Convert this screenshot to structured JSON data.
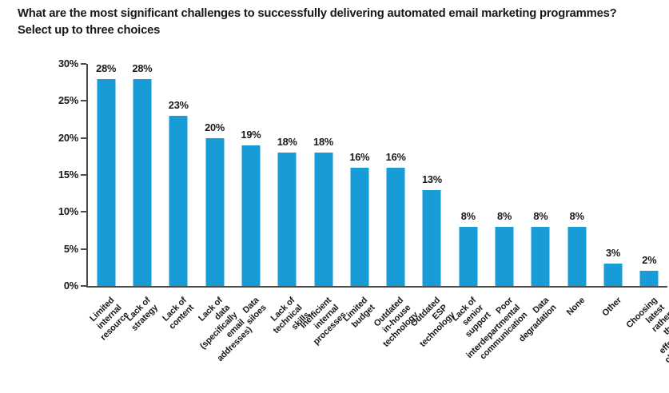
{
  "header": {
    "title": "What are the most significant challenges to successfully delivering automated email marketing programmes?\nSelect up to three choices"
  },
  "chart_data": {
    "type": "bar",
    "title": "What are the most significant challenges to successfully delivering automated email marketing programmes? Select up to three choices",
    "categories": [
      "Limited internal resource",
      "Lack of strategy",
      "Lack of content",
      "Lack of data\n(specifically email addresses)",
      "Data siloes",
      "Lack of technical skills",
      "Inefficient internal processes",
      "Limited budget",
      "Outdated in-house technology",
      "Outdated ESP technology",
      "Lack of senior support",
      "Poor interdepartmental\ncommunication",
      "Data degradation",
      "None",
      "Other",
      "Choosing latest rather\nthan effective channels"
    ],
    "values": [
      28,
      28,
      23,
      20,
      19,
      18,
      18,
      16,
      16,
      13,
      8,
      8,
      8,
      8,
      3,
      2
    ],
    "value_labels": [
      "28%",
      "28%",
      "23%",
      "20%",
      "19%",
      "18%",
      "18%",
      "16%",
      "16%",
      "13%",
      "8%",
      "8%",
      "8%",
      "8%",
      "3%",
      "2%"
    ],
    "xlabel": "",
    "ylabel": "",
    "ylim": [
      0,
      30
    ],
    "ytick_values": [
      0,
      5,
      10,
      15,
      20,
      25,
      30
    ],
    "ytick_labels": [
      "0%",
      "5%",
      "10%",
      "15%",
      "20%",
      "25%",
      "30%"
    ],
    "grid": false,
    "legend": "none",
    "colors": {
      "bar": "#189cd8",
      "axis": "#4a4a4a",
      "text": "#1a1718"
    }
  }
}
